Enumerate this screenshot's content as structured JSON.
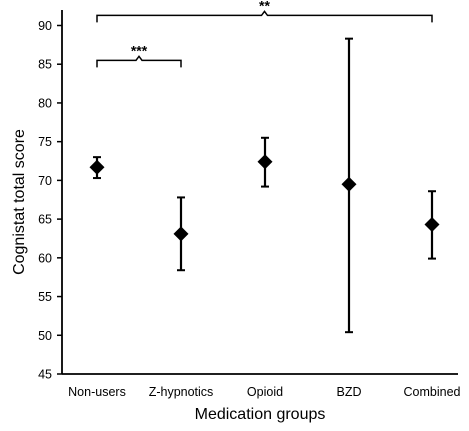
{
  "chart_data": {
    "type": "scatter",
    "xlabel": "Medication groups",
    "ylabel": "Cognistat total score",
    "ylim": [
      45,
      92
    ],
    "yticks": [
      45,
      50,
      55,
      60,
      65,
      70,
      75,
      80,
      85,
      90
    ],
    "categories": [
      "Non-users",
      "Z-hypnotics",
      "Opioid",
      "BZD",
      "Combined"
    ],
    "series": [
      {
        "values": [
          71.7,
          63.1,
          72.4,
          69.5,
          64.3
        ],
        "error_low": [
          70.3,
          58.4,
          69.2,
          50.4,
          59.9
        ],
        "error_high": [
          73.0,
          67.8,
          75.5,
          88.3,
          68.6
        ],
        "marker": "diamond",
        "color": "#000000"
      }
    ],
    "annotations": [
      {
        "label": "***",
        "from": "Non-users",
        "to": "Z-hypnotics",
        "y": 85.5
      },
      {
        "label": "**",
        "from": "Non-users",
        "to": "Combined",
        "y": 91.3
      }
    ],
    "grid": false,
    "legend": "none"
  }
}
